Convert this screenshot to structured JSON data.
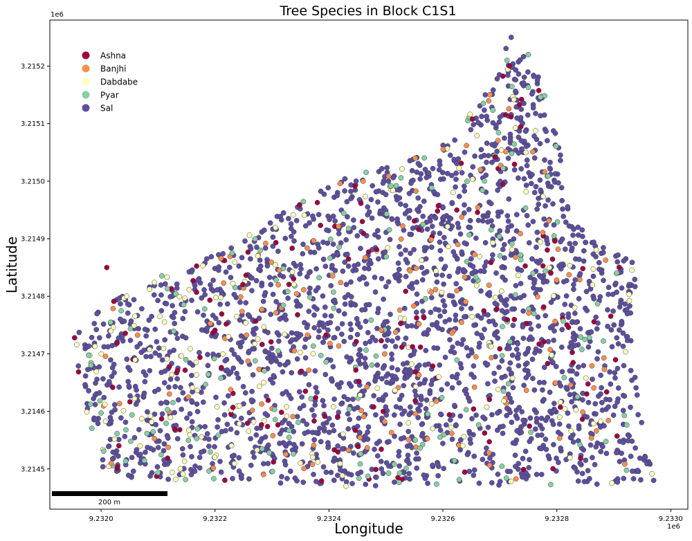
{
  "chart_data": {
    "type": "scatter",
    "title": "Tree Species in Block C1S1",
    "xlabel": "Longitude",
    "ylabel": "Latitude",
    "x_offset_label": "1e6",
    "y_offset_label": "1e6",
    "xlim": [
      9.23191,
      9.23303
    ],
    "ylim": [
      3.21443,
      3.21528
    ],
    "xticks": [
      9.232,
      9.2322,
      9.2324,
      9.2326,
      9.2328,
      9.233
    ],
    "xtick_labels": [
      "9.2320",
      "9.2322",
      "9.2324",
      "9.2326",
      "9.2328",
      "9.2330"
    ],
    "yticks": [
      3.2145,
      3.2146,
      3.2147,
      3.2148,
      3.2149,
      3.215,
      3.2151,
      3.2152
    ],
    "ytick_labels": [
      "3.2145",
      "3.2146",
      "3.2147",
      "3.2148",
      "3.2149",
      "3.2150",
      "3.2151",
      "3.2152"
    ],
    "grid": false,
    "legend_position": "upper-left",
    "scalebar": {
      "label": "200 m",
      "position": "lower-left"
    },
    "boundary": [
      [
        9.23195,
        3.21473
      ],
      [
        9.232,
        3.21478
      ],
      [
        9.2321,
        3.21484
      ],
      [
        9.23222,
        3.21488
      ],
      [
        9.23238,
        3.21499
      ],
      [
        9.23247,
        3.21502
      ],
      [
        9.23262,
        3.21507
      ],
      [
        9.23272,
        3.21525
      ],
      [
        9.23279,
        3.21515
      ],
      [
        9.23283,
        3.21493
      ],
      [
        9.23287,
        3.21489
      ],
      [
        9.23294,
        3.21486
      ],
      [
        9.23293,
        3.2147
      ],
      [
        9.23297,
        3.21448
      ],
      [
        9.23283,
        3.21447
      ],
      [
        9.23255,
        3.21447
      ],
      [
        9.2324,
        3.21447
      ],
      [
        9.23223,
        3.21448
      ],
      [
        9.23207,
        3.21448
      ],
      [
        9.232,
        3.2145
      ],
      [
        9.23198,
        3.21456
      ],
      [
        9.23196,
        3.21466
      ]
    ],
    "series": [
      {
        "name": "Ashna",
        "color": "#9e0142",
        "share": 0.055
      },
      {
        "name": "Banjhi",
        "color": "#f98e52",
        "share": 0.05
      },
      {
        "name": "Dabdabe",
        "color": "#ffffbe",
        "share": 0.045
      },
      {
        "name": "Pyar",
        "color": "#88cfa4",
        "share": 0.06
      },
      {
        "name": "Sal",
        "color": "#5e4fa2",
        "share": 0.79
      }
    ],
    "approx_point_count": 3000,
    "sample_points": [
      {
        "series": "Sal",
        "x": 9.23297,
        "y": 3.21448
      },
      {
        "series": "Sal",
        "x": 9.23272,
        "y": 3.21525
      },
      {
        "series": "Pyar",
        "x": 9.23275,
        "y": 3.21522
      },
      {
        "series": "Ashna",
        "x": 9.23201,
        "y": 3.21485
      },
      {
        "series": "Dabdabe",
        "x": 9.23243,
        "y": 3.21447
      },
      {
        "series": "Banjhi",
        "x": 9.23246,
        "y": 3.215
      }
    ]
  }
}
